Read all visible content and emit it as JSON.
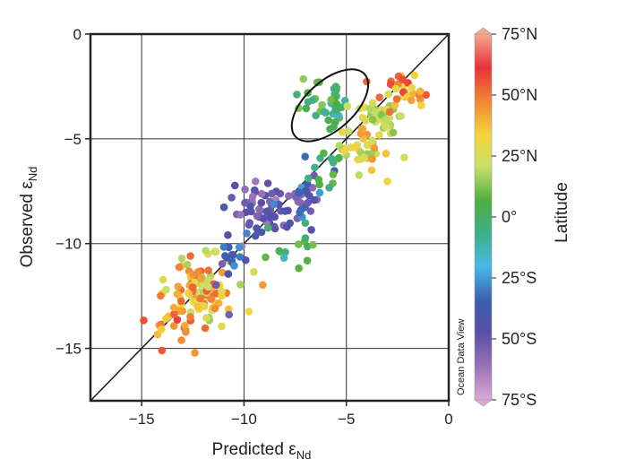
{
  "chart_data": {
    "type": "scatter",
    "title": "",
    "xlabel": "Predicted ε",
    "xlabel_sub": "Nd",
    "ylabel": "Observed ε",
    "ylabel_sub": "Nd",
    "xlim": [
      -17.5,
      0
    ],
    "ylim": [
      -17.5,
      0
    ],
    "xticks": [
      -15,
      -10,
      -5,
      0
    ],
    "yticks": [
      0,
      -5,
      -10,
      -15
    ],
    "xtick_labels": [
      "−15",
      "−10",
      "−5",
      "0"
    ],
    "ytick_labels": [
      "0",
      "−5",
      "−10",
      "−15"
    ],
    "grid": true,
    "reference_line": "1:1",
    "annotation": {
      "shape": "ellipse",
      "center": [
        -5.8,
        -3.4
      ],
      "note": "cluster of tropical (green) points"
    },
    "colorbar": {
      "label": "Latitude",
      "range": [
        -75,
        75
      ],
      "tick_values": [
        75,
        50,
        25,
        0,
        -25,
        -50,
        -75
      ],
      "tick_labels": [
        "75°N",
        "50°N",
        "25°N",
        "0°",
        "25°S",
        "50°S",
        "75°S"
      ],
      "colors": [
        "#f4a88e",
        "#e8313a",
        "#f08534",
        "#f5d23a",
        "#c9df6a",
        "#4eae3f",
        "#3fb08a",
        "#48b8e8",
        "#3a5fb0",
        "#5b4fa8",
        "#9a72b8",
        "#dca9d6"
      ]
    },
    "watermark": "Ocean Data View",
    "clusters": [
      {
        "cx": -12.0,
        "cy": -12.3,
        "sx": 0.75,
        "sy": 0.85,
        "n": 95,
        "lat": [
          15,
          55
        ]
      },
      {
        "cx": -13.2,
        "cy": -13.3,
        "sx": 0.7,
        "sy": 0.8,
        "n": 25,
        "lat": [
          35,
          60
        ]
      },
      {
        "cx": -9.0,
        "cy": -8.5,
        "sx": 0.8,
        "sy": 0.6,
        "n": 55,
        "lat": [
          -65,
          -40
        ]
      },
      {
        "cx": -7.2,
        "cy": -8.0,
        "sx": 0.7,
        "sy": 0.7,
        "n": 30,
        "lat": [
          -60,
          -20
        ]
      },
      {
        "cx": -10.7,
        "cy": -10.4,
        "sx": 0.5,
        "sy": 0.7,
        "n": 18,
        "lat": [
          -55,
          -25
        ]
      },
      {
        "cx": -7.5,
        "cy": -10.0,
        "sx": 0.55,
        "sy": 0.6,
        "n": 14,
        "lat": [
          -15,
          15
        ]
      },
      {
        "cx": -5.8,
        "cy": -3.5,
        "sx": 0.7,
        "sy": 0.6,
        "n": 40,
        "lat": [
          -15,
          15
        ]
      },
      {
        "cx": -4.3,
        "cy": -5.6,
        "sx": 0.8,
        "sy": 0.6,
        "n": 38,
        "lat": [
          15,
          45
        ]
      },
      {
        "cx": -3.3,
        "cy": -3.9,
        "sx": 0.5,
        "sy": 0.5,
        "n": 40,
        "lat": [
          12,
          30
        ]
      },
      {
        "cx": -2.1,
        "cy": -2.7,
        "sx": 0.6,
        "sy": 0.5,
        "n": 30,
        "lat": [
          30,
          60
        ]
      },
      {
        "cx": -6.2,
        "cy": -6.5,
        "sx": 0.5,
        "sy": 0.5,
        "n": 12,
        "lat": [
          -10,
          10
        ]
      }
    ]
  }
}
